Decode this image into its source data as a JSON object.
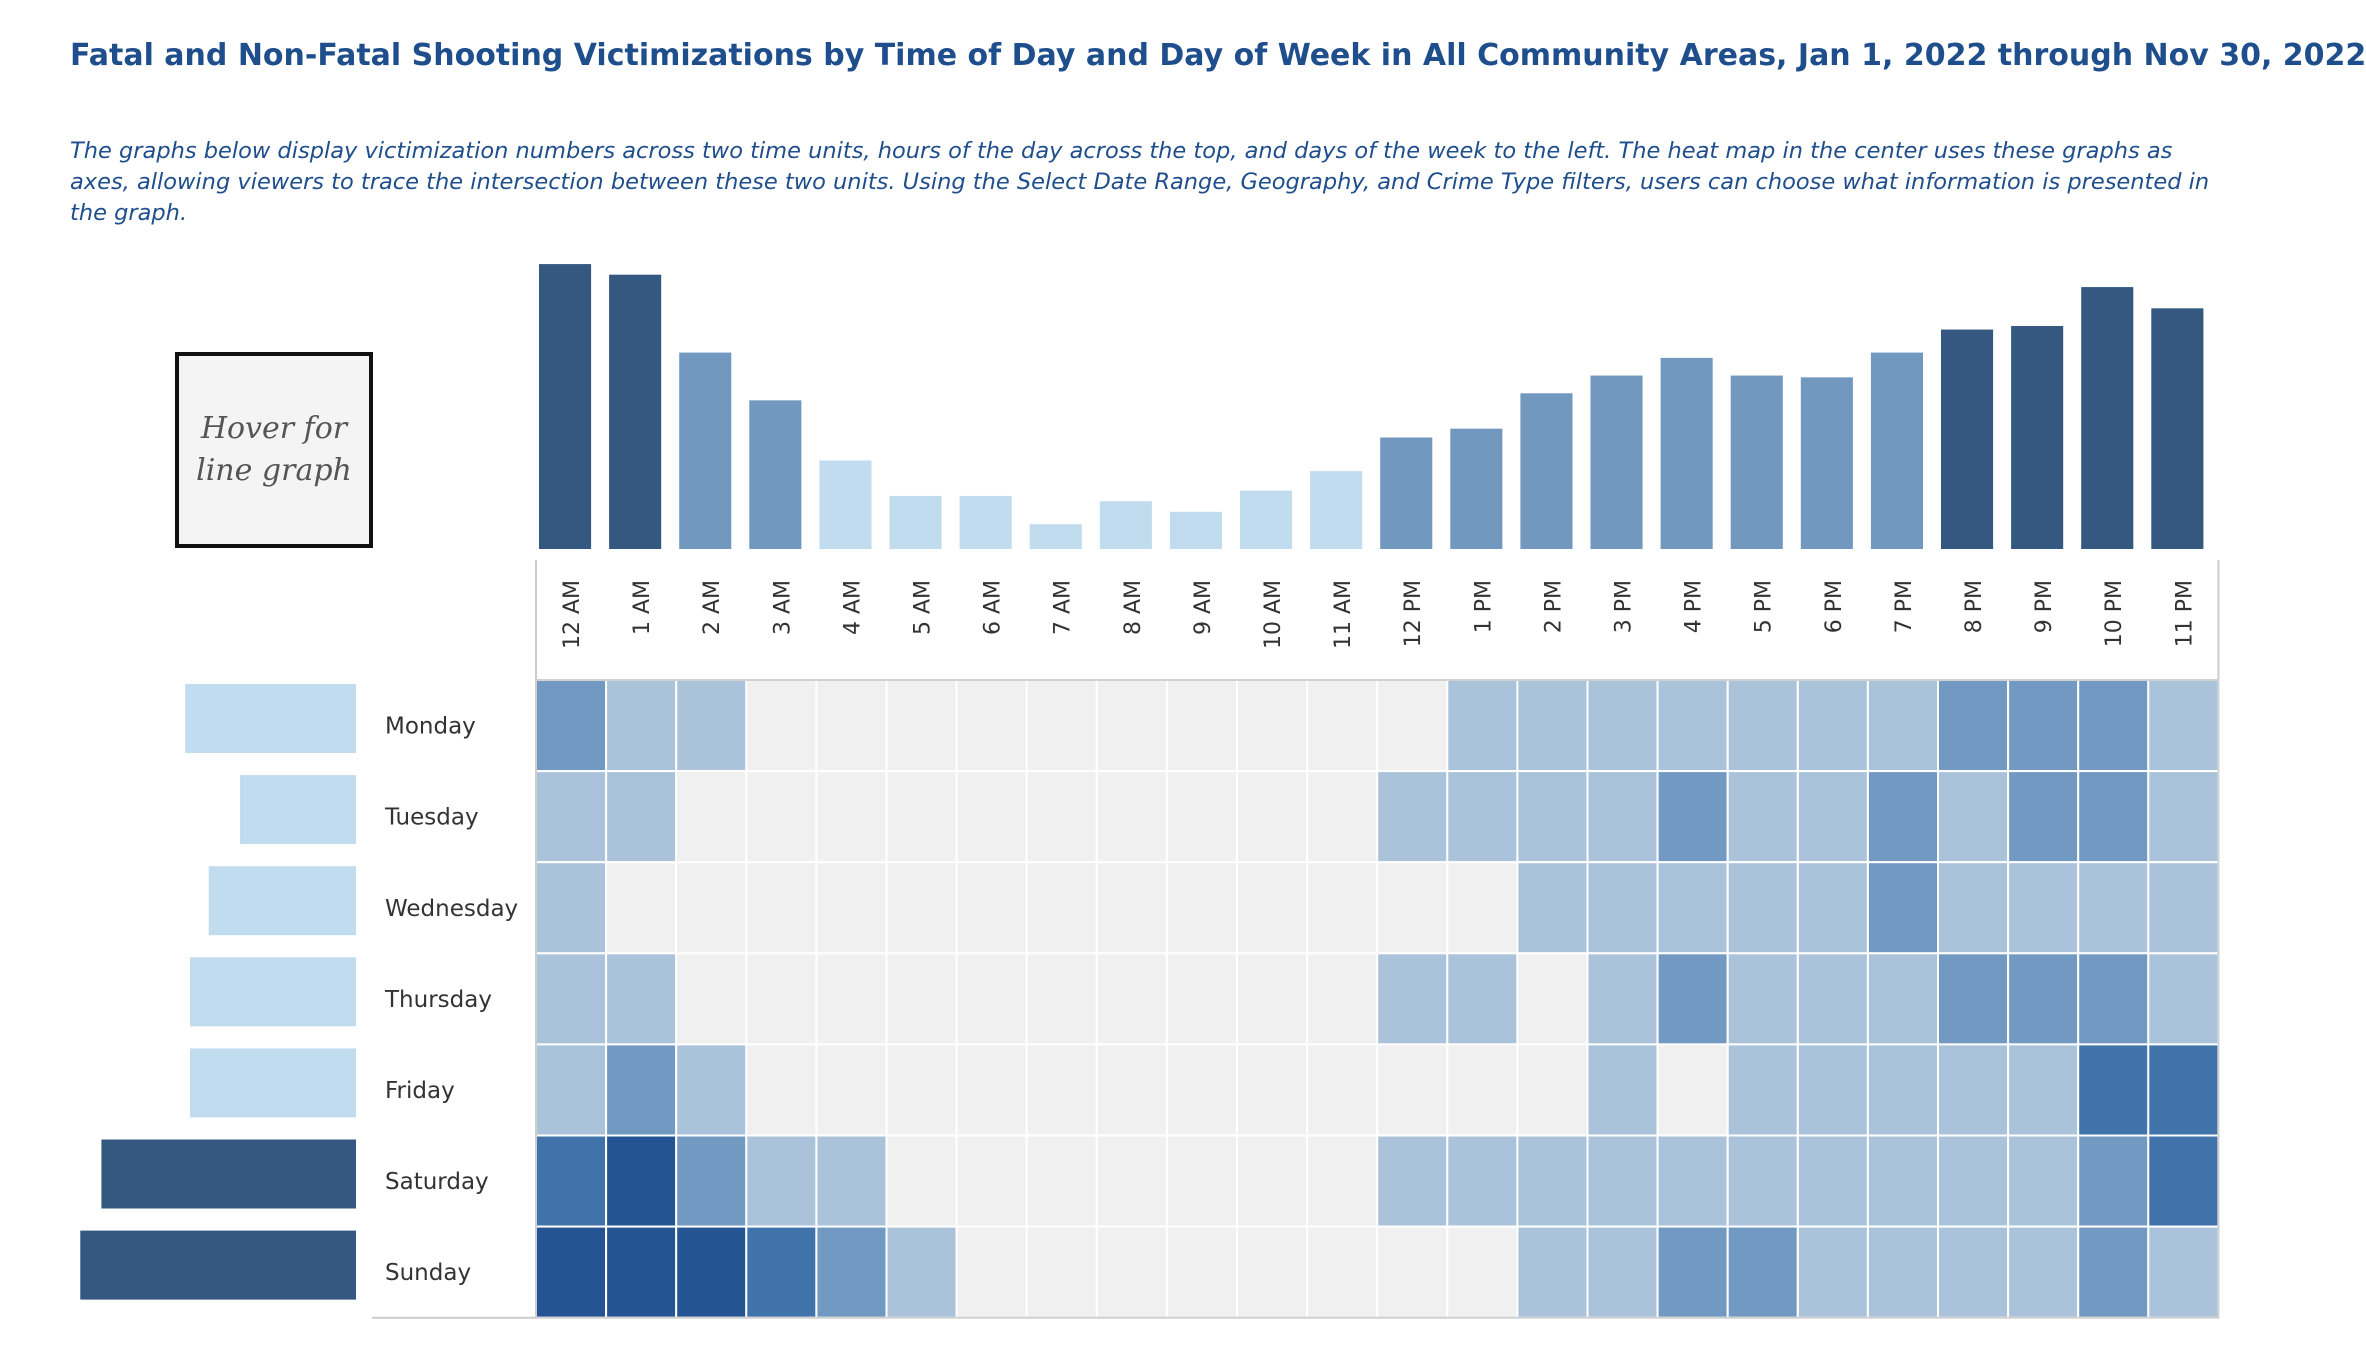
{
  "header": {
    "title": "Fatal and Non-Fatal Shooting Victimizations by Time of Day and Day of Week in All Community Areas, Jan 1, 2022 through Nov 30, 2022",
    "description": "The graphs below display victimization numbers across two time units, hours of the day across the top, and days of the week to the left. The heat map in the center uses these graphs as axes, allowing viewers to trace the intersection between these two units. Using the Select Date Range, Geography, and Crime Type filters, users can choose what information is presented in the graph."
  },
  "hover_box": {
    "line1": "Hover for",
    "line2": "line graph"
  },
  "colors": {
    "bar_dark": "#34587f",
    "bar_mid": "#7298bf",
    "bar_light": "#c1dcef",
    "heat_empty": "#f0f0f0",
    "heat_1": "#abc3da",
    "heat_2": "#7199c2",
    "heat_3": "#3f73aa",
    "heat_4": "#255493",
    "grid_line": "#ffffff"
  },
  "chart_data": [
    {
      "type": "bar",
      "categories": [
        "12 AM",
        "1 AM",
        "2 AM",
        "3 AM",
        "4 AM",
        "5 AM",
        "6 AM",
        "7 AM",
        "8 AM",
        "9 AM",
        "10 AM",
        "11 AM",
        "12 PM",
        "1 PM",
        "2 PM",
        "3 PM",
        "4 PM",
        "5 PM",
        "6 PM",
        "7 PM",
        "8 PM",
        "9 PM",
        "10 PM",
        "11 PM"
      ],
      "values": [
        161,
        155,
        111,
        84,
        50,
        30,
        30,
        14,
        27,
        21,
        33,
        44,
        63,
        68,
        88,
        98,
        108,
        98,
        97,
        111,
        124,
        126,
        148,
        136
      ],
      "color_level": [
        "dark",
        "dark",
        "mid",
        "mid",
        "light",
        "light",
        "light",
        "light",
        "light",
        "light",
        "light",
        "light",
        "mid",
        "mid",
        "mid",
        "mid",
        "mid",
        "mid",
        "mid",
        "mid",
        "dark",
        "dark",
        "dark",
        "dark"
      ],
      "ylim": [
        0,
        165
      ]
    },
    {
      "type": "bar",
      "categories": [
        "Monday",
        "Tuesday",
        "Wednesday",
        "Thursday",
        "Friday",
        "Saturday",
        "Sunday"
      ],
      "values": [
        218,
        148,
        188,
        212,
        212,
        325,
        352
      ],
      "color_level": [
        "light",
        "light",
        "light",
        "light",
        "light",
        "dark",
        "dark"
      ],
      "xlim": [
        0,
        360
      ]
    },
    {
      "type": "heatmap",
      "x": [
        "12 AM",
        "1 AM",
        "2 AM",
        "3 AM",
        "4 AM",
        "5 AM",
        "6 AM",
        "7 AM",
        "8 AM",
        "9 AM",
        "10 AM",
        "11 AM",
        "12 PM",
        "1 PM",
        "2 PM",
        "3 PM",
        "4 PM",
        "5 PM",
        "6 PM",
        "7 PM",
        "8 PM",
        "9 PM",
        "10 PM",
        "11 PM"
      ],
      "y": [
        "Monday",
        "Tuesday",
        "Wednesday",
        "Thursday",
        "Friday",
        "Saturday",
        "Sunday"
      ],
      "levels": [
        [
          2,
          1,
          1,
          0,
          0,
          0,
          0,
          0,
          0,
          0,
          0,
          0,
          0,
          1,
          1,
          1,
          1,
          1,
          1,
          1,
          2,
          2,
          2,
          1
        ],
        [
          1,
          1,
          0,
          0,
          0,
          0,
          0,
          0,
          0,
          0,
          0,
          0,
          1,
          1,
          1,
          1,
          2,
          1,
          1,
          2,
          1,
          2,
          2,
          1
        ],
        [
          1,
          0,
          0,
          0,
          0,
          0,
          0,
          0,
          0,
          0,
          0,
          0,
          0,
          0,
          1,
          1,
          1,
          1,
          1,
          2,
          1,
          1,
          1,
          1
        ],
        [
          1,
          1,
          0,
          0,
          0,
          0,
          0,
          0,
          0,
          0,
          0,
          0,
          1,
          1,
          0,
          1,
          2,
          1,
          1,
          1,
          2,
          2,
          2,
          1
        ],
        [
          1,
          2,
          1,
          0,
          0,
          0,
          0,
          0,
          0,
          0,
          0,
          0,
          0,
          0,
          0,
          1,
          0,
          1,
          1,
          1,
          1,
          1,
          3,
          3
        ],
        [
          3,
          4,
          2,
          1,
          1,
          0,
          0,
          0,
          0,
          0,
          0,
          0,
          1,
          1,
          1,
          1,
          1,
          1,
          1,
          1,
          1,
          1,
          2,
          3
        ],
        [
          4,
          4,
          4,
          3,
          2,
          1,
          0,
          0,
          0,
          0,
          0,
          0,
          0,
          0,
          1,
          1,
          2,
          2,
          1,
          1,
          1,
          1,
          2,
          1
        ]
      ]
    }
  ]
}
